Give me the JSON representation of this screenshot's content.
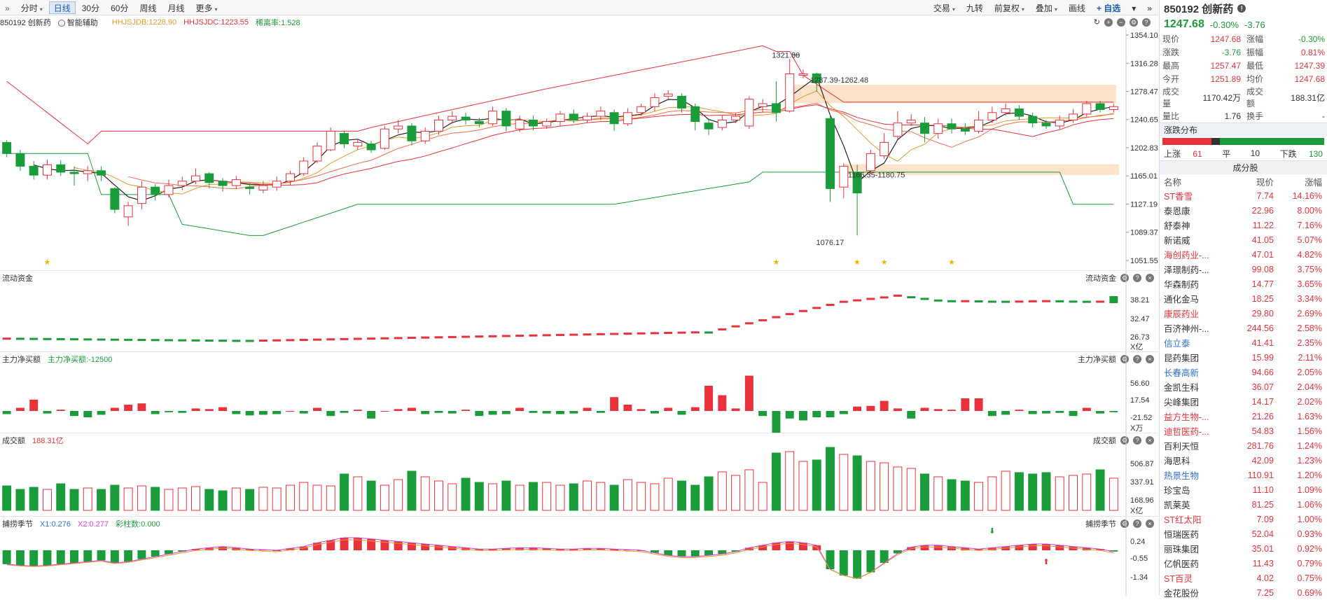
{
  "toolbar": {
    "left": [
      {
        "label": "分时",
        "caret": true
      },
      {
        "label": "日线",
        "active": true
      },
      {
        "label": "30分"
      },
      {
        "label": "60分"
      },
      {
        "label": "周线"
      },
      {
        "label": "月线"
      },
      {
        "label": "更多",
        "caret": true
      }
    ],
    "right": [
      {
        "label": "交易",
        "caret": true
      },
      {
        "label": "九转"
      },
      {
        "label": "前复权",
        "caret": true
      },
      {
        "label": "叠加",
        "caret": true
      },
      {
        "label": "画线"
      },
      {
        "label": "+ 自选"
      }
    ]
  },
  "info": {
    "code_name": "850192 创新药",
    "assist": "智能辅助",
    "hhsjdb": "HHJSJDB:1228.90",
    "hhsjdc": "HHJSJDC:1223.55",
    "ratio": "稀离率:1.528"
  },
  "main_axis": [
    "1354.10",
    "1316.28",
    "1278.47",
    "1240.65",
    "1202.83",
    "1165.01",
    "1127.19",
    "1089.37",
    "1051.55"
  ],
  "annotations": {
    "high": "1321.80",
    "low": "1076.17",
    "zone1": "1287.39-1262.48",
    "zone2": "1166.35-1180.75"
  },
  "flow": {
    "title": "流动资金",
    "right_title": "流动资金",
    "axis": [
      "38.21",
      "32.47",
      "26.73"
    ],
    "unit": "X亿"
  },
  "net": {
    "title": "主力净买额",
    "value": "主力净买额:-12500",
    "right_title": "主力净买额",
    "axis": [
      "56.60",
      "17.54",
      "-21.52"
    ],
    "unit": "X万"
  },
  "vol": {
    "title": "成交额",
    "value": "188.31亿",
    "right_title": "成交额",
    "axis": [
      "506.87",
      "337.91",
      "168.96"
    ],
    "unit": "X亿"
  },
  "season": {
    "title": "捕捞季节",
    "x1": "X1:0.276",
    "x2": "X2:0.277",
    "bars": "彩柱数:0.000",
    "right_title": "捕捞季节",
    "axis": [
      "0.24",
      "-0.55",
      "-1.34"
    ]
  },
  "right": {
    "title": "850192 创新药",
    "price": "1247.68",
    "change_pct": "-0.30%",
    "change": "-3.76",
    "quotes": [
      [
        "现价",
        "1247.68",
        "涨幅",
        "-0.30%"
      ],
      [
        "涨跌",
        "-3.76",
        "振幅",
        "0.81%"
      ],
      [
        "最高",
        "1257.47",
        "最低",
        "1247.39"
      ],
      [
        "今开",
        "1251.89",
        "均价",
        "1247.68"
      ],
      [
        "成交量",
        "1170.42万",
        "成交额",
        "188.31亿"
      ],
      [
        "量比",
        "1.76",
        "换手",
        "-"
      ]
    ],
    "dist_title": "涨跌分布",
    "up_label": "上涨",
    "up": "61",
    "flat_label": "平",
    "flat": "10",
    "down_label": "下跌",
    "down": "130",
    "comp_title": "成分股",
    "cols": [
      "名称",
      "现价",
      "涨幅"
    ],
    "stocks": [
      [
        "ST香雪",
        "7.74",
        "14.16%",
        "red"
      ],
      [
        "泰恩康",
        "22.96",
        "8.00%",
        ""
      ],
      [
        "舒泰神",
        "11.22",
        "7.16%",
        ""
      ],
      [
        "新诺威",
        "41.05",
        "5.07%",
        ""
      ],
      [
        "海创药业-...",
        "47.01",
        "4.82%",
        "red"
      ],
      [
        "泽璟制药-...",
        "99.08",
        "3.75%",
        ""
      ],
      [
        "华森制药",
        "14.77",
        "3.65%",
        ""
      ],
      [
        "通化金马",
        "18.25",
        "3.34%",
        ""
      ],
      [
        "康辰药业",
        "29.80",
        "2.69%",
        "red"
      ],
      [
        "百济神州-...",
        "244.56",
        "2.58%",
        ""
      ],
      [
        "信立泰",
        "41.41",
        "2.35%",
        "blue"
      ],
      [
        "昆药集团",
        "15.99",
        "2.11%",
        ""
      ],
      [
        "长春高新",
        "94.66",
        "2.05%",
        "blue"
      ],
      [
        "金凯生科",
        "36.07",
        "2.04%",
        ""
      ],
      [
        "尖峰集团",
        "14.17",
        "2.02%",
        ""
      ],
      [
        "益方生物-...",
        "21.26",
        "1.63%",
        "red"
      ],
      [
        "迪哲医药-...",
        "54.83",
        "1.56%",
        "red"
      ],
      [
        "百利天恒",
        "281.76",
        "1.24%",
        ""
      ],
      [
        "海思科",
        "42.09",
        "1.23%",
        ""
      ],
      [
        "热景生物",
        "110.91",
        "1.20%",
        "blue"
      ],
      [
        "珍宝岛",
        "11.10",
        "1.09%",
        ""
      ],
      [
        "凯莱英",
        "81.25",
        "1.06%",
        ""
      ],
      [
        "ST红太阳",
        "7.09",
        "1.00%",
        "red"
      ],
      [
        "恒瑞医药",
        "52.04",
        "0.93%",
        ""
      ],
      [
        "丽珠集团",
        "35.01",
        "0.92%",
        ""
      ],
      [
        "亿帆医药",
        "11.43",
        "0.79%",
        ""
      ],
      [
        "ST百灵",
        "4.02",
        "0.75%",
        "red"
      ],
      [
        "金花股份",
        "7.25",
        "0.69%",
        ""
      ]
    ]
  },
  "chart_data": {
    "type": "candlestick",
    "ylim": [
      1051.55,
      1354.1
    ],
    "candles": [
      [
        1210,
        1195,
        1213,
        1190
      ],
      [
        1195,
        1178,
        1200,
        1172
      ],
      [
        1178,
        1166,
        1185,
        1160
      ],
      [
        1166,
        1180,
        1187,
        1160
      ],
      [
        1180,
        1170,
        1186,
        1165
      ],
      [
        1170,
        1168,
        1178,
        1152
      ],
      [
        1168,
        1172,
        1178,
        1158
      ],
      [
        1172,
        1166,
        1178,
        1158
      ],
      [
        1148,
        1120,
        1150,
        1115
      ],
      [
        1110,
        1125,
        1130,
        1098
      ],
      [
        1128,
        1150,
        1158,
        1120
      ],
      [
        1150,
        1140,
        1154,
        1132
      ],
      [
        1140,
        1152,
        1160,
        1136
      ],
      [
        1152,
        1158,
        1164,
        1146
      ],
      [
        1158,
        1165,
        1175,
        1154
      ],
      [
        1168,
        1156,
        1170,
        1148
      ],
      [
        1158,
        1152,
        1162,
        1144
      ],
      [
        1152,
        1160,
        1165,
        1148
      ],
      [
        1150,
        1148,
        1156,
        1140
      ],
      [
        1146,
        1152,
        1158,
        1142
      ],
      [
        1150,
        1158,
        1164,
        1145
      ],
      [
        1158,
        1168,
        1172,
        1152
      ],
      [
        1168,
        1185,
        1190,
        1165
      ],
      [
        1185,
        1205,
        1210,
        1182
      ],
      [
        1200,
        1225,
        1230,
        1198
      ],
      [
        1222,
        1208,
        1226,
        1202
      ],
      [
        1205,
        1210,
        1215,
        1200
      ],
      [
        1208,
        1200,
        1212,
        1196
      ],
      [
        1202,
        1228,
        1232,
        1200
      ],
      [
        1228,
        1232,
        1240,
        1222
      ],
      [
        1232,
        1212,
        1236,
        1206
      ],
      [
        1212,
        1225,
        1230,
        1208
      ],
      [
        1225,
        1240,
        1246,
        1220
      ],
      [
        1240,
        1245,
        1252,
        1235
      ],
      [
        1244,
        1240,
        1250,
        1234
      ],
      [
        1238,
        1235,
        1243,
        1230
      ],
      [
        1235,
        1252,
        1258,
        1232
      ],
      [
        1252,
        1232,
        1256,
        1225
      ],
      [
        1228,
        1240,
        1246,
        1224
      ],
      [
        1240,
        1232,
        1246,
        1226
      ],
      [
        1232,
        1238,
        1242,
        1228
      ],
      [
        1238,
        1248,
        1252,
        1232
      ],
      [
        1248,
        1240,
        1254,
        1236
      ],
      [
        1240,
        1245,
        1250,
        1236
      ],
      [
        1245,
        1252,
        1258,
        1240
      ],
      [
        1250,
        1235,
        1254,
        1226
      ],
      [
        1235,
        1250,
        1256,
        1232
      ],
      [
        1250,
        1258,
        1262,
        1246
      ],
      [
        1258,
        1270,
        1276,
        1252
      ],
      [
        1272,
        1275,
        1280,
        1266
      ],
      [
        1272,
        1256,
        1276,
        1250
      ],
      [
        1258,
        1238,
        1262,
        1226
      ],
      [
        1236,
        1228,
        1242,
        1220
      ],
      [
        1230,
        1240,
        1246,
        1226
      ],
      [
        1240,
        1245,
        1250,
        1236
      ],
      [
        1232,
        1268,
        1272,
        1228
      ],
      [
        1258,
        1262,
        1268,
        1250
      ],
      [
        1262,
        1250,
        1292,
        1238
      ],
      [
        1252,
        1302,
        1322,
        1250
      ],
      [
        1300,
        1302,
        1308,
        1296
      ],
      [
        1302,
        1290,
        1304,
        1278
      ],
      [
        1242,
        1148,
        1248,
        1130
      ],
      [
        1150,
        1178,
        1182,
        1135
      ],
      [
        1170,
        1142,
        1180,
        1085
      ],
      [
        1172,
        1195,
        1200,
        1168
      ],
      [
        1192,
        1210,
        1222,
        1188
      ],
      [
        1218,
        1236,
        1252,
        1214
      ],
      [
        1236,
        1240,
        1248,
        1232
      ],
      [
        1236,
        1222,
        1244,
        1210
      ],
      [
        1222,
        1235,
        1242,
        1215
      ],
      [
        1235,
        1228,
        1242,
        1222
      ],
      [
        1228,
        1225,
        1236,
        1220
      ],
      [
        1225,
        1240,
        1252,
        1222
      ],
      [
        1240,
        1250,
        1258,
        1236
      ],
      [
        1250,
        1255,
        1262,
        1246
      ],
      [
        1255,
        1245,
        1260,
        1240
      ],
      [
        1245,
        1236,
        1250,
        1230
      ],
      [
        1236,
        1232,
        1240,
        1228
      ],
      [
        1232,
        1240,
        1246,
        1228
      ],
      [
        1240,
        1248,
        1255,
        1236
      ],
      [
        1248,
        1262,
        1266,
        1244
      ],
      [
        1262,
        1254,
        1266,
        1250
      ],
      [
        1254,
        1258,
        1262,
        1250
      ]
    ]
  }
}
